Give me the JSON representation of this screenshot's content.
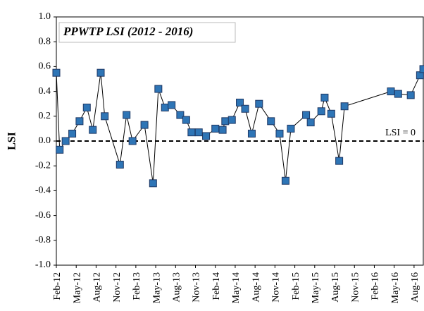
{
  "chart_data": {
    "type": "line",
    "title": "PPWTP LSI (2012 - 2016)",
    "y_label": "LSI",
    "series": [
      {
        "name": "LSI",
        "color": "#2e75b6",
        "x": [
          0,
          0.5,
          1.4,
          2.4,
          3.5,
          4.6,
          5.5,
          6.7,
          7.3,
          9.6,
          10.6,
          11.5,
          13.3,
          14.6,
          15.4,
          16.4,
          17.4,
          18.7,
          19.6,
          20.4,
          21.5,
          22.6,
          24.0,
          25.1,
          25.5,
          26.5,
          27.7,
          28.5,
          29.5,
          30.6,
          32.4,
          33.7,
          34.6,
          35.4,
          37.7,
          38.4,
          40.0,
          40.5,
          41.5,
          42.7,
          43.5,
          50.5,
          51.6,
          53.5,
          54.9,
          55.4
        ],
        "values": [
          0.55,
          -0.07,
          0.0,
          0.06,
          0.16,
          0.27,
          0.09,
          0.55,
          0.2,
          -0.19,
          0.21,
          0.0,
          0.13,
          -0.34,
          0.42,
          0.27,
          0.29,
          0.21,
          0.17,
          0.07,
          0.07,
          0.04,
          0.1,
          0.09,
          0.16,
          0.17,
          0.31,
          0.26,
          0.06,
          0.3,
          0.16,
          0.06,
          -0.32,
          0.1,
          0.21,
          0.15,
          0.24,
          0.35,
          0.22,
          -0.16,
          0.28,
          0.4,
          0.38,
          0.37,
          0.53,
          0.58
        ]
      }
    ],
    "reference_line": {
      "value": 0,
      "label": "LSI = 0"
    },
    "xlim": [
      0,
      55.5
    ],
    "xticks": [
      {
        "value": 0,
        "label": "Feb-12"
      },
      {
        "value": 3,
        "label": "May-12"
      },
      {
        "value": 6,
        "label": "Aug-12"
      },
      {
        "value": 9,
        "label": "Nov-12"
      },
      {
        "value": 12,
        "label": "Feb-13"
      },
      {
        "value": 15,
        "label": "May-13"
      },
      {
        "value": 18,
        "label": "Aug-13"
      },
      {
        "value": 21,
        "label": "Nov-13"
      },
      {
        "value": 24,
        "label": "Feb-14"
      },
      {
        "value": 27,
        "label": "May-14"
      },
      {
        "value": 30,
        "label": "Aug-14"
      },
      {
        "value": 33,
        "label": "Nov-14"
      },
      {
        "value": 36,
        "label": "Feb-15"
      },
      {
        "value": 39,
        "label": "May-15"
      },
      {
        "value": 42,
        "label": "Aug-15"
      },
      {
        "value": 45,
        "label": "Nov-15"
      },
      {
        "value": 48,
        "label": "Feb-16"
      },
      {
        "value": 51,
        "label": "May-16"
      },
      {
        "value": 54,
        "label": "Aug-16"
      }
    ],
    "ylim": [
      -1,
      1
    ],
    "yticks": [
      {
        "value": -1,
        "label": "-1.0"
      },
      -0.8,
      -0.6,
      -0.4,
      -0.2,
      {
        "value": 0,
        "label": "0.0"
      },
      0.2,
      0.4,
      0.6,
      0.8,
      {
        "value": 1,
        "label": "1.0"
      }
    ]
  }
}
